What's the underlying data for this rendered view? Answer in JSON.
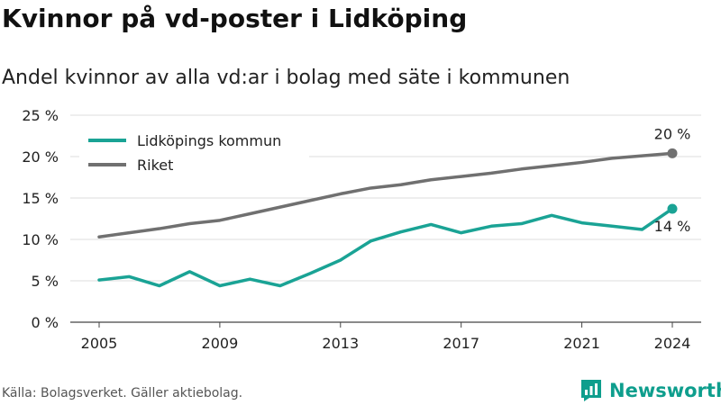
{
  "header": {
    "title": "Kvinnor på vd-poster i Lidköping",
    "subtitle": "Andel kvinnor av alla vd:ar i bolag med säte i kommunen"
  },
  "footer": {
    "source": "Källa: Bolagsverket. Gäller aktiebolag.",
    "brand": "Newsworthy",
    "brand_color": "#0e9e8d"
  },
  "chart_data": {
    "type": "line",
    "title": "Kvinnor på vd-poster i Lidköping",
    "subtitle": "Andel kvinnor av alla vd:ar i bolag med säte i kommunen",
    "xlabel": "",
    "ylabel": "",
    "x": [
      2005,
      2006,
      2007,
      2008,
      2009,
      2010,
      2011,
      2012,
      2013,
      2014,
      2015,
      2016,
      2017,
      2018,
      2019,
      2020,
      2021,
      2022,
      2023,
      2024
    ],
    "xlim": [
      2005,
      2024
    ],
    "ylim": [
      0,
      25
    ],
    "x_ticks": [
      "2005",
      "2009",
      "2013",
      "2017",
      "2021",
      "2024"
    ],
    "y_ticks": [
      "0 %",
      "5 %",
      "10 %",
      "15 %",
      "20 %",
      "25 %"
    ],
    "grid": true,
    "legend_position": "top-left",
    "series": [
      {
        "name": "Lidköpings kommun",
        "color": "#1aa395",
        "values": [
          5.1,
          5.5,
          4.4,
          6.1,
          4.4,
          5.2,
          4.4,
          5.9,
          7.5,
          9.8,
          10.9,
          11.8,
          10.8,
          11.6,
          11.9,
          12.9,
          12.0,
          11.6,
          11.2,
          13.7
        ],
        "end_label": "14 %"
      },
      {
        "name": "Riket",
        "color": "#707070",
        "values": [
          10.3,
          10.8,
          11.3,
          11.9,
          12.3,
          13.1,
          13.9,
          14.7,
          15.5,
          16.2,
          16.6,
          17.2,
          17.6,
          18.0,
          18.5,
          18.9,
          19.3,
          19.8,
          20.1,
          20.4
        ],
        "end_label": "20 %"
      }
    ]
  }
}
